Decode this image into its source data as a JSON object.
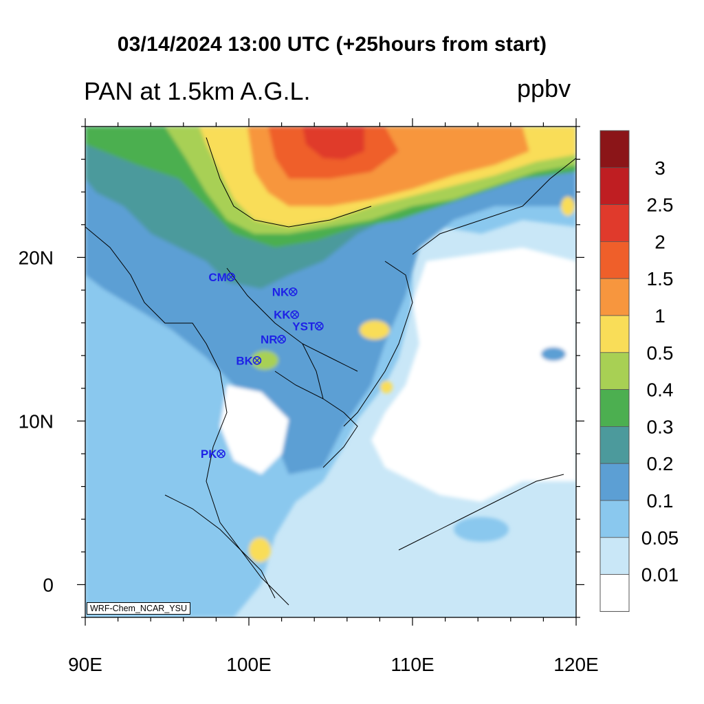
{
  "header": {
    "title": "03/14/2024 13:00 UTC (+25hours from start)",
    "variable_label": "PAN at 1.5km A.G.L.",
    "units": "ppbv"
  },
  "map": {
    "lon_range": [
      90,
      120
    ],
    "lat_range": [
      -2,
      28
    ],
    "x_tick_labels": [
      {
        "lon": 90,
        "label": "90E"
      },
      {
        "lon": 100,
        "label": "100E"
      },
      {
        "lon": 110,
        "label": "110E"
      },
      {
        "lon": 120,
        "label": "120E"
      }
    ],
    "y_tick_labels": [
      {
        "lat": 20,
        "label": "20N"
      },
      {
        "lat": 10,
        "label": "10N"
      },
      {
        "lat": 0,
        "label": "0"
      }
    ],
    "stations": [
      {
        "code": "CM",
        "lon": 98.9,
        "lat": 18.8
      },
      {
        "code": "NK",
        "lon": 102.7,
        "lat": 17.9
      },
      {
        "code": "KK",
        "lon": 102.8,
        "lat": 16.5
      },
      {
        "code": "YST",
        "lon": 104.3,
        "lat": 15.8
      },
      {
        "code": "NR",
        "lon": 102.0,
        "lat": 15.0
      },
      {
        "code": "BK",
        "lon": 100.5,
        "lat": 13.7
      },
      {
        "code": "PK",
        "lon": 98.3,
        "lat": 8.0
      }
    ],
    "credit": "WRF-Chem_NCAR_YSU"
  },
  "colorbar": {
    "labels": [
      "3",
      "2.5",
      "2",
      "1.5",
      "1",
      "0.5",
      "0.4",
      "0.3",
      "0.2",
      "0.1",
      "0.05",
      "0.01"
    ],
    "colors_top_to_bottom": [
      "#8b1518",
      "#bf1e22",
      "#e03a2c",
      "#ef5f2a",
      "#f7963e",
      "#f9dd58",
      "#a8d054",
      "#4caf50",
      "#4c9a9c",
      "#5c9fd4",
      "#8ac8ee",
      "#c9e7f7",
      "#ffffff"
    ]
  }
}
